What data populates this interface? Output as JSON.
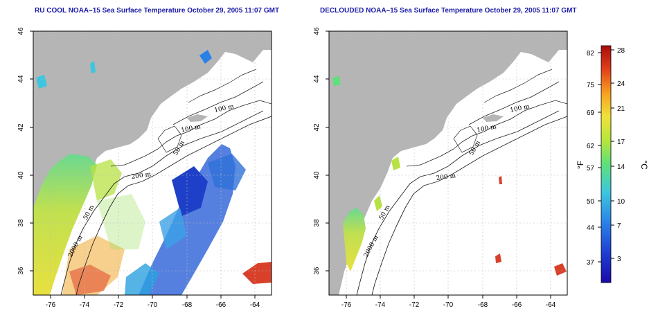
{
  "panels": [
    {
      "title": "RU COOL NOAA–15 Sea Surface Temperature October 29, 2005 11:07 GMT"
    },
    {
      "title": "DECLOUDED NOAA–15 Sea Surface Temperature October 29, 2005 11:07 GMT"
    }
  ],
  "axes": {
    "x_ticks": [
      "-76",
      "-74",
      "-72",
      "-70",
      "-68",
      "-66",
      "-64"
    ],
    "y_ticks": [
      "46",
      "44",
      "42",
      "40",
      "38",
      "36"
    ],
    "x_range": [
      -77.2,
      -63.2
    ],
    "y_range": [
      35,
      46
    ]
  },
  "contour_labels": [
    "100 m",
    "100 m",
    "50 m",
    "200 m",
    "50 m",
    "2000 m"
  ],
  "colorbar": {
    "fahrenheit_label": "°F",
    "celsius_label": "°C",
    "fahrenheit_ticks": [
      "82",
      "75",
      "69",
      "62",
      "57",
      "50",
      "44",
      "37"
    ],
    "celsius_ticks": [
      "28",
      "24",
      "21",
      "17",
      "14",
      "10",
      "7",
      "3"
    ],
    "colors": [
      "#1a0aa8",
      "#1e3cd2",
      "#2a80e6",
      "#3cc6e0",
      "#5ee07a",
      "#b6e63c",
      "#f0e23a",
      "#f6a020",
      "#e2401a",
      "#a80c0c"
    ]
  },
  "colors": {
    "land": "#b5b5b5",
    "grid": "#bbbbbb",
    "title": "#1a1aa8"
  }
}
